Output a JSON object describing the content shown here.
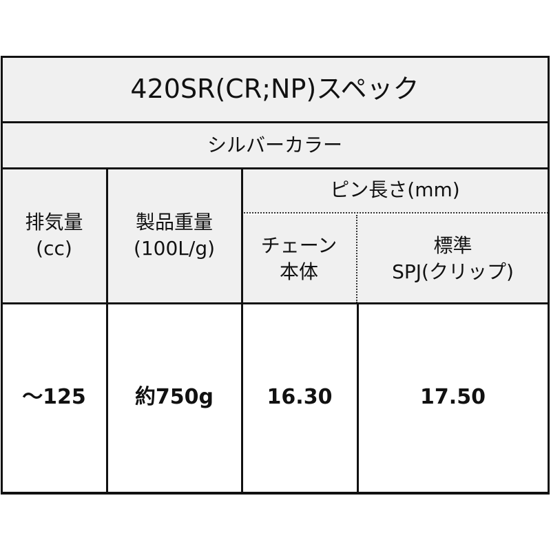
{
  "title": "420SR(CR;NP)スペック",
  "subtitle": "シルバーカラー",
  "headers": {
    "displacement": [
      "排気量",
      "(cc)"
    ],
    "weight": [
      "製品重量",
      "(100L/g)"
    ],
    "pin_length": "ピン長さ(mm)",
    "chain_body": [
      "チェーン",
      "本体"
    ],
    "standard": [
      "標準",
      "SPJ(クリップ)"
    ]
  },
  "row": {
    "displacement": "～125",
    "weight": "約750g",
    "chain_body": "16.30",
    "standard": "17.50"
  }
}
